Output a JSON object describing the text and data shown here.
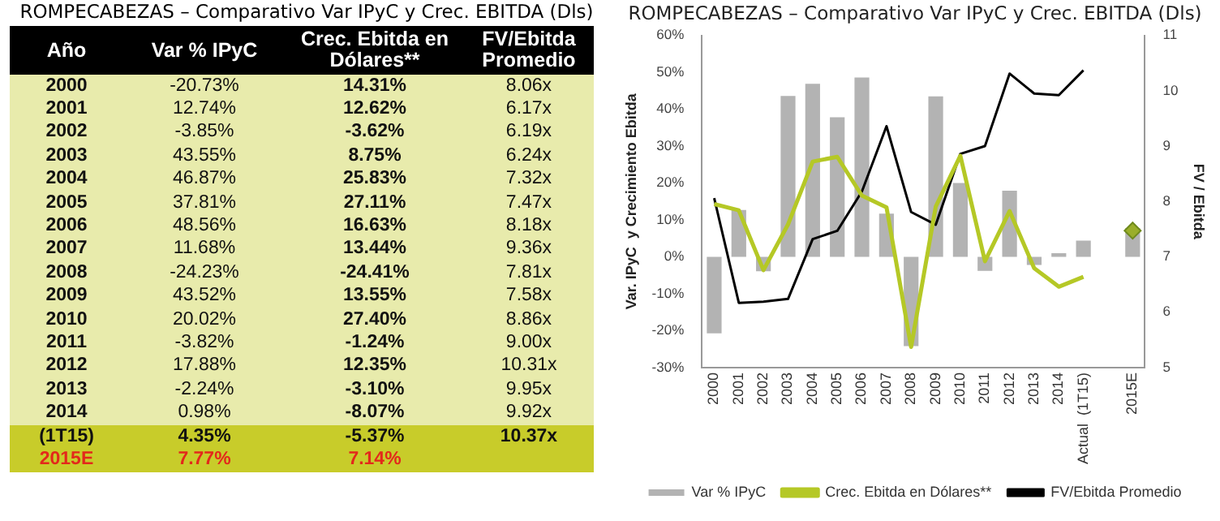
{
  "chart_data": [
    {
      "type": "heatmap",
      "title": "ROMPECABEZAS – Comparativo Var IPyC y Crec. EBITDA (Dls)",
      "ylabel": "Año",
      "categories": [
        "Var % IPyC",
        "Crec. Ebitda en Dólares**",
        "FV/Ebitda Promedio"
      ],
      "y_categories": [
        "2000",
        "2001",
        "2002",
        "2003",
        "2004",
        "2005",
        "2006",
        "2007",
        "2008",
        "2009",
        "2010",
        "2011",
        "2012",
        "2013",
        "2014",
        "(1T15)",
        "2015E"
      ],
      "cells": [
        [
          -20.73,
          14.31,
          8.06
        ],
        [
          12.74,
          12.62,
          6.17
        ],
        [
          -3.85,
          -3.62,
          6.19
        ],
        [
          43.55,
          8.75,
          6.24
        ],
        [
          46.87,
          25.83,
          7.32
        ],
        [
          37.81,
          27.11,
          7.47
        ],
        [
          48.56,
          16.63,
          8.18
        ],
        [
          11.68,
          13.44,
          9.36
        ],
        [
          -24.23,
          -24.41,
          7.81
        ],
        [
          43.52,
          13.55,
          7.58
        ],
        [
          20.02,
          27.4,
          8.86
        ],
        [
          -3.82,
          -1.24,
          9.0
        ],
        [
          17.88,
          12.35,
          10.31
        ],
        [
          -2.24,
          -3.1,
          9.95
        ],
        [
          0.98,
          -8.07,
          9.92
        ],
        [
          4.35,
          -5.37,
          10.37
        ],
        [
          7.77,
          7.14,
          null
        ]
      ],
      "cell_labels": [
        [
          "-20.73%",
          "14.31%",
          "8.06x"
        ],
        [
          "12.74%",
          "12.62%",
          "6.17x"
        ],
        [
          "-3.85%",
          "-3.62%",
          "6.19x"
        ],
        [
          "43.55%",
          "8.75%",
          "6.24x"
        ],
        [
          "46.87%",
          "25.83%",
          "7.32x"
        ],
        [
          "37.81%",
          "27.11%",
          "7.47x"
        ],
        [
          "48.56%",
          "16.63%",
          "8.18x"
        ],
        [
          "11.68%",
          "13.44%",
          "9.36x"
        ],
        [
          "-24.23%",
          "-24.41%",
          "7.81x"
        ],
        [
          "43.52%",
          "13.55%",
          "7.58x"
        ],
        [
          "20.02%",
          "27.40%",
          "8.86x"
        ],
        [
          "-3.82%",
          "-1.24%",
          "9.00x"
        ],
        [
          "17.88%",
          "12.35%",
          "10.31x"
        ],
        [
          "-2.24%",
          "-3.10%",
          "9.95x"
        ],
        [
          "0.98%",
          "-8.07%",
          "9.92x"
        ],
        [
          "4.35%",
          "-5.37%",
          "10.37x"
        ],
        [
          "7.77%",
          "7.14%",
          null
        ]
      ]
    },
    {
      "type": "bar",
      "title": "ROMPECABEZAS – Comparativo Var IPyC y Crec. EBITDA (Dls)",
      "ylabel": "Var. IPyC  y Crecimiento Ebitda",
      "y2label": "FV / Ebitda",
      "categories": [
        "2000",
        "2001",
        "2002",
        "2003",
        "2004",
        "2005",
        "2006",
        "2007",
        "2008",
        "2009",
        "2010",
        "2011",
        "2012",
        "2013",
        "2014",
        "Actual  (1T15)",
        null,
        "2015E"
      ],
      "ylim": [
        -30,
        60
      ],
      "yticks": [
        {
          "value": -30,
          "label": "-30%"
        },
        {
          "value": -20,
          "label": "-20%"
        },
        {
          "value": -10,
          "label": "-10%"
        },
        {
          "value": 0,
          "label": "0%"
        },
        {
          "value": 10,
          "label": "10%"
        },
        {
          "value": 20,
          "label": "20%"
        },
        {
          "value": 30,
          "label": "30%"
        },
        {
          "value": 40,
          "label": "40%"
        },
        {
          "value": 50,
          "label": "50%"
        },
        {
          "value": 60,
          "label": "60%"
        }
      ],
      "y2lim": [
        5,
        11
      ],
      "y2ticks": [
        5,
        6,
        7,
        8,
        9,
        10,
        11
      ],
      "grid": false,
      "legend": "bottom",
      "line_style": "solid",
      "series": [
        {
          "name": "Var % IPyC",
          "type": "bar",
          "color": "#b3b3b3",
          "values": [
            -20.7,
            12.7,
            -3.9,
            43.6,
            46.9,
            37.8,
            48.6,
            11.7,
            -24.2,
            43.5,
            20.0,
            -3.8,
            17.9,
            -2.2,
            1.0,
            4.4,
            null,
            7.8
          ]
        },
        {
          "name": "Crec. Ebitda en Dólares**",
          "type": "line",
          "color": "#b5c826",
          "values": [
            14.3,
            12.6,
            -3.6,
            8.8,
            25.8,
            27.1,
            16.6,
            13.4,
            -24.4,
            13.6,
            27.4,
            -1.2,
            12.4,
            -3.1,
            -8.1,
            -5.4,
            null,
            null
          ]
        },
        {
          "type": "scatter",
          "color": "#9aae2a",
          "marker": "diamond",
          "values": [
            null,
            null,
            null,
            null,
            null,
            null,
            null,
            null,
            null,
            null,
            null,
            null,
            null,
            null,
            null,
            null,
            null,
            7.1
          ]
        },
        {
          "name": "FV/Ebitda Promedio",
          "type": "line",
          "axis": "y2",
          "color": "#000000",
          "values": [
            8.06,
            6.17,
            6.19,
            6.24,
            7.32,
            7.47,
            8.18,
            9.36,
            7.81,
            7.58,
            8.86,
            9.0,
            10.31,
            9.95,
            9.92,
            10.37,
            null,
            null
          ]
        }
      ]
    }
  ]
}
